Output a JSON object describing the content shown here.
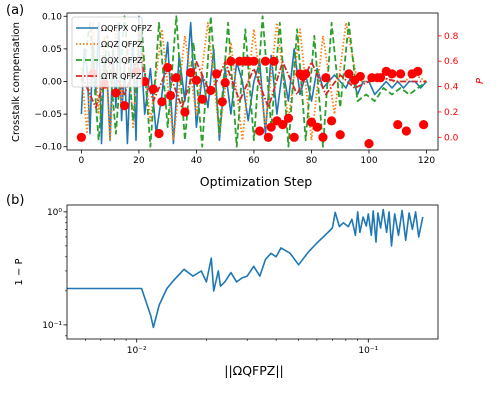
{
  "panel_a": {
    "label": "(a)",
    "ylabel": "Crosstalk compensation",
    "ylabel_right": "P",
    "xlabel": "Optimization Step",
    "xticks": [
      0,
      20,
      40,
      60,
      80,
      100,
      120
    ],
    "yticks": [
      -0.1,
      -0.05,
      0.0,
      0.05,
      0.1
    ],
    "yticks_right": [
      0.0,
      0.2,
      0.4,
      0.6,
      0.8
    ],
    "legend": [
      "ΩQFPX QFPZ",
      "ΩQZ QFPZ",
      "ΩQX QFPZ",
      "ΩTR QFPZ"
    ],
    "colors": [
      "#1f77b4",
      "#ff7f0e",
      "#2ca02c",
      "#d62728",
      "#ff0000"
    ]
  },
  "panel_b": {
    "label": "(b)",
    "ylabel": "1 − P",
    "xlabel": "||ΩQFPZ||",
    "xtick_labels": [
      "10⁻²",
      "10⁻¹"
    ],
    "ytick_labels": [
      "10⁰",
      "10⁻¹"
    ],
    "color": "#1f77b4"
  },
  "chart_data": [
    {
      "type": "line",
      "title": "",
      "xlabel": "Optimization Step",
      "ylabel": "Crosstalk compensation",
      "xlim": [
        -5,
        124
      ],
      "ylim": [
        -0.105,
        0.105
      ],
      "series": [
        {
          "name": "ΩQFPX QFPZ",
          "axis": "left",
          "x": [
            0,
            1,
            2,
            3,
            4,
            5,
            6,
            7,
            8,
            9,
            10,
            11,
            12,
            13,
            14,
            15,
            16,
            17,
            18,
            19,
            20,
            22,
            24,
            26,
            28,
            30,
            32,
            34,
            36,
            38,
            40,
            42,
            44,
            46,
            48,
            50,
            52,
            54,
            56,
            58,
            60,
            62,
            64,
            66,
            68,
            70,
            72,
            74,
            76,
            78,
            80,
            82,
            84,
            86,
            88,
            90,
            92,
            94,
            96,
            98,
            100,
            102,
            104,
            106,
            108,
            110,
            112,
            114,
            116,
            118,
            120
          ],
          "y": [
            -0.05,
            0.05,
            0.02,
            -0.08,
            0.06,
            -0.02,
            0.09,
            -0.095,
            0.04,
            0.0,
            -0.09,
            0.05,
            -0.04,
            0.09,
            -0.06,
            0.03,
            -0.095,
            0.01,
            0.06,
            -0.09,
            0.1,
            -0.05,
            0.02,
            -0.08,
            -0.02,
            0.06,
            -0.095,
            0.04,
            -0.03,
            0.09,
            -0.07,
            0.01,
            -0.04,
            0.05,
            -0.09,
            0.02,
            -0.05,
            0.03,
            0.0,
            -0.06,
            0.0,
            0.03,
            -0.08,
            0.04,
            -0.05,
            0.02,
            -0.03,
            0.05,
            -0.02,
            0.01,
            -0.03,
            0.02,
            -0.01,
            0.0,
            0.01,
            0.0,
            -0.01,
            0.01,
            -0.02,
            0.0,
            0.0,
            -0.02,
            -0.01,
            0.0,
            -0.01,
            0.0,
            -0.01,
            0.0,
            0.0,
            -0.01,
            0.0
          ]
        },
        {
          "name": "ΩQZ QFPZ",
          "axis": "left",
          "x": [
            0,
            2,
            4,
            6,
            8,
            10,
            12,
            14,
            16,
            18,
            20,
            24,
            28,
            32,
            36,
            40,
            44,
            48,
            52,
            56,
            60,
            64,
            68,
            72,
            76,
            80,
            84,
            88,
            92,
            96,
            100,
            104,
            108,
            112,
            116,
            120
          ],
          "y": [
            0.02,
            -0.08,
            0.09,
            -0.05,
            0.07,
            -0.09,
            0.08,
            -0.03,
            0.06,
            -0.07,
            0.09,
            -0.06,
            0.08,
            -0.09,
            0.07,
            -0.05,
            0.09,
            -0.08,
            0.06,
            -0.09,
            0.08,
            -0.07,
            0.09,
            -0.06,
            0.08,
            -0.09,
            0.07,
            -0.05,
            0.09,
            0.0,
            0.0,
            0.01,
            0.0,
            0.0,
            0.01,
            0.0
          ]
        },
        {
          "name": "ΩQX QFPZ",
          "axis": "left",
          "x": [
            0,
            3,
            6,
            9,
            12,
            15,
            18,
            21,
            24,
            27,
            30,
            33,
            36,
            39,
            42,
            45,
            48,
            51,
            54,
            57,
            60,
            63,
            66,
            69,
            72,
            75,
            78,
            81,
            84,
            87,
            90,
            93,
            96,
            99,
            102,
            105,
            108,
            111,
            114,
            117,
            120
          ],
          "y": [
            0.0,
            0.09,
            -0.09,
            0.07,
            -0.08,
            0.1,
            -0.06,
            0.08,
            -0.1,
            0.09,
            -0.07,
            0.1,
            -0.09,
            0.06,
            -0.1,
            0.1,
            -0.08,
            0.09,
            -0.1,
            0.08,
            -0.09,
            0.1,
            -0.07,
            0.09,
            -0.1,
            0.08,
            -0.09,
            0.07,
            -0.1,
            0.09,
            -0.04,
            0.09,
            -0.03,
            -0.02,
            -0.03,
            -0.01,
            -0.02,
            -0.01,
            -0.02,
            -0.01,
            0.0
          ]
        },
        {
          "name": "ΩTR QFPZ",
          "axis": "left",
          "x": [
            0,
            5,
            10,
            15,
            20,
            25,
            30,
            35,
            40,
            45,
            50,
            55,
            60,
            65,
            70,
            75,
            80,
            85,
            90,
            95,
            100,
            105,
            110,
            115,
            120
          ],
          "y": [
            0.01,
            -0.04,
            0.03,
            -0.02,
            0.04,
            -0.03,
            0.02,
            -0.04,
            0.03,
            -0.02,
            0.03,
            -0.03,
            0.02,
            -0.04,
            0.03,
            -0.02,
            0.03,
            -0.02,
            0.01,
            -0.01,
            0.0,
            0.005,
            0.0,
            0.0,
            0.0
          ]
        },
        {
          "name": "",
          "axis": "right",
          "style": "markers",
          "x": [
            0,
            4,
            8,
            12,
            15,
            19,
            22,
            25,
            27,
            28,
            30,
            31,
            33,
            36,
            38,
            40,
            42,
            45,
            47,
            49,
            50,
            52,
            55,
            57,
            58,
            60,
            62,
            64,
            65,
            66,
            67,
            68,
            70,
            72,
            74,
            76,
            77,
            78,
            80,
            82,
            84,
            85,
            87,
            90,
            93,
            95,
            97,
            100,
            101,
            103,
            104,
            106,
            108,
            110,
            111,
            113,
            115,
            117,
            119
          ],
          "y": [
            0.0,
            0.5,
            0.42,
            0.35,
            0.25,
            0.52,
            0.44,
            0.38,
            0.03,
            0.28,
            0.55,
            0.33,
            0.47,
            0.2,
            0.51,
            0.45,
            0.3,
            0.37,
            0.5,
            0.28,
            0.43,
            0.6,
            0.6,
            0.6,
            0.6,
            0.6,
            0.05,
            0.6,
            0.0,
            0.08,
            0.6,
            0.13,
            0.1,
            0.15,
            0.0,
            0.5,
            0.48,
            0.5,
            0.12,
            0.08,
            0.0,
            0.47,
            0.13,
            0.02,
            0.5,
            0.45,
            0.48,
            -0.05,
            0.47,
            0.47,
            0.47,
            0.52,
            0.5,
            0.1,
            0.5,
            0.05,
            0.5,
            0.52,
            0.1
          ]
        }
      ],
      "y2lim": [
        -0.1,
        0.98
      ]
    },
    {
      "type": "line",
      "title": "",
      "xlabel": "||ΩQFPZ||",
      "ylabel": "1 − P",
      "xscale": "log",
      "yscale": "log",
      "xlim": [
        0.005,
        0.2
      ],
      "ylim": [
        0.075,
        1.15
      ],
      "series": [
        {
          "name": "",
          "x": [
            0.005,
            0.0095,
            0.0105,
            0.0115,
            0.0118,
            0.0125,
            0.0135,
            0.0145,
            0.016,
            0.0175,
            0.019,
            0.02,
            0.021,
            0.0215,
            0.0225,
            0.023,
            0.024,
            0.0255,
            0.027,
            0.0285,
            0.03,
            0.032,
            0.034,
            0.036,
            0.038,
            0.04,
            0.042,
            0.046,
            0.05,
            0.055,
            0.06,
            0.065,
            0.07,
            0.072,
            0.075,
            0.078,
            0.082,
            0.085,
            0.088,
            0.09,
            0.092,
            0.095,
            0.098,
            0.1,
            0.103,
            0.105,
            0.108,
            0.11,
            0.113,
            0.116,
            0.12,
            0.123,
            0.126,
            0.13,
            0.135,
            0.14,
            0.145,
            0.15,
            0.155,
            0.16,
            0.165,
            0.172
          ],
          "y": [
            0.21,
            0.21,
            0.21,
            0.12,
            0.095,
            0.15,
            0.21,
            0.25,
            0.31,
            0.27,
            0.3,
            0.24,
            0.39,
            0.2,
            0.3,
            0.22,
            0.24,
            0.29,
            0.24,
            0.26,
            0.27,
            0.33,
            0.27,
            0.38,
            0.43,
            0.4,
            0.48,
            0.43,
            0.34,
            0.44,
            0.53,
            0.62,
            0.72,
            0.99,
            0.74,
            0.8,
            0.74,
            0.86,
            0.62,
            1.0,
            0.66,
            0.9,
            0.75,
            0.96,
            0.62,
            1.02,
            0.54,
            0.98,
            0.72,
            1.05,
            0.66,
            1.0,
            0.5,
            0.96,
            0.62,
            1.03,
            0.56,
            0.98,
            0.7,
            1.0,
            0.6,
            0.9
          ]
        }
      ]
    }
  ]
}
